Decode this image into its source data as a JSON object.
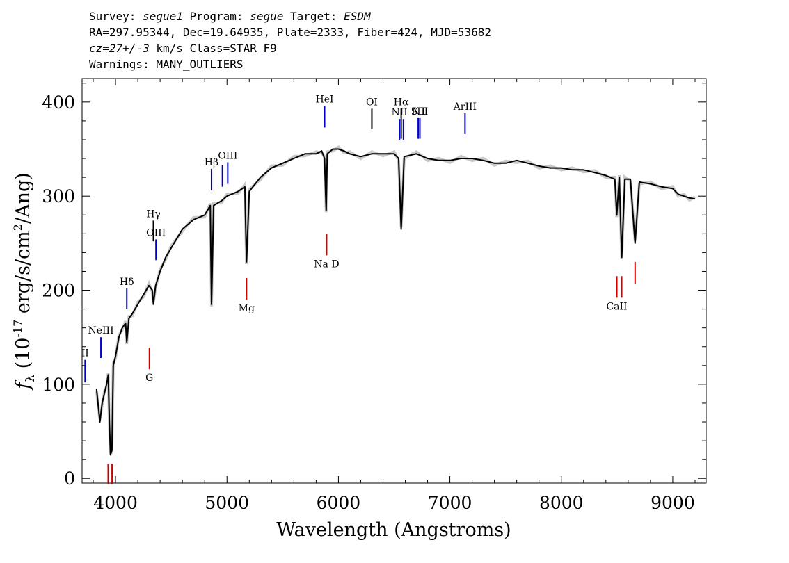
{
  "header": {
    "line1": {
      "survey_label": "Survey: ",
      "survey": "segue1",
      "program_label": " Program: ",
      "program": "segue",
      "target_label": " Target: ",
      "target": "ESDM"
    },
    "line2": "RA=297.95344, Dec=19.64935, Plate=2333, Fiber=424, MJD=53682",
    "line3": {
      "cz": "cz=27+/-3",
      "rest": " km/s Class=STAR F9"
    },
    "line4": "Warnings: MANY_OUTLIERS"
  },
  "chart_data": {
    "type": "line",
    "xlabel": "Wavelength (Angstroms)",
    "ylabel_parts": {
      "f": "f",
      "sub": "λ",
      "pre": " (10",
      "exp": "-17",
      "mid": " erg/s/cm",
      "exp2": "2",
      "post": "/Ang)"
    },
    "xlim": [
      3700,
      9300
    ],
    "ylim": [
      -5,
      425
    ],
    "x_ticks": [
      4000,
      5000,
      6000,
      7000,
      8000,
      9000
    ],
    "y_ticks": [
      0,
      100,
      200,
      300,
      400
    ],
    "x_tick_labels": [
      "4000",
      "5000",
      "6000",
      "7000",
      "8000",
      "9000"
    ],
    "y_tick_labels": [
      "0",
      "100",
      "200",
      "300",
      "400"
    ],
    "series": [
      {
        "color": "#000000",
        "x": [
          3830,
          3860,
          3880,
          3900,
          3920,
          3935,
          3945,
          3955,
          3968,
          3980,
          4000,
          4030,
          4060,
          4090,
          4101,
          4120,
          4150,
          4200,
          4250,
          4300,
          4330,
          4340,
          4360,
          4400,
          4450,
          4500,
          4600,
          4700,
          4800,
          4850,
          4861,
          4880,
          4950,
          5000,
          5100,
          5160,
          5175,
          5200,
          5300,
          5400,
          5500,
          5600,
          5700,
          5800,
          5850,
          5875,
          5890,
          5900,
          5950,
          6000,
          6050,
          6100,
          6200,
          6300,
          6400,
          6500,
          6540,
          6563,
          6590,
          6700,
          6800,
          6900,
          7000,
          7100,
          7200,
          7300,
          7400,
          7500,
          7600,
          7700,
          7800,
          7900,
          8000,
          8100,
          8200,
          8300,
          8400,
          8480,
          8498,
          8520,
          8542,
          8570,
          8620,
          8662,
          8700,
          8800,
          8900,
          9000,
          9050,
          9100,
          9150,
          9200
        ],
        "y": [
          95,
          60,
          80,
          90,
          100,
          110,
          60,
          25,
          30,
          120,
          130,
          150,
          160,
          165,
          145,
          170,
          175,
          185,
          195,
          205,
          200,
          185,
          205,
          220,
          235,
          245,
          265,
          275,
          280,
          290,
          185,
          290,
          295,
          300,
          305,
          310,
          230,
          305,
          320,
          330,
          335,
          340,
          345,
          345,
          348,
          340,
          285,
          345,
          350,
          350,
          348,
          345,
          342,
          345,
          345,
          345,
          340,
          265,
          342,
          345,
          340,
          338,
          338,
          340,
          340,
          338,
          335,
          335,
          338,
          335,
          332,
          330,
          330,
          328,
          328,
          325,
          322,
          318,
          280,
          320,
          235,
          318,
          318,
          250,
          315,
          313,
          310,
          308,
          302,
          300,
          298,
          297
        ]
      }
    ],
    "emission_lines": [
      {
        "label": "II",
        "wave": 3727,
        "color": "#0000cc",
        "y1": 102,
        "y2": 126
      },
      {
        "label": "NeIII",
        "wave": 3869,
        "color": "#0000cc",
        "y1": 128,
        "y2": 150
      },
      {
        "label": "Hδ",
        "wave": 4101,
        "color": "#0000cc",
        "y1": 180,
        "y2": 202
      },
      {
        "label": "Hγ",
        "wave": 4340,
        "color": "#000000",
        "y1": 252,
        "y2": 274
      },
      {
        "label": "OIII",
        "wave": 4363,
        "color": "#0000cc",
        "y1": 232,
        "y2": 254
      },
      {
        "label": "Hβ",
        "wave": 4861,
        "color": "#0000cc",
        "y1": 306,
        "y2": 329
      },
      {
        "label": "",
        "wave": 4959,
        "color": "#0000cc",
        "y1": 310,
        "y2": 333
      },
      {
        "label": "OIII",
        "wave": 5007,
        "color": "#0000cc",
        "y1": 313,
        "y2": 336
      },
      {
        "label": "HeI",
        "wave": 5876,
        "color": "#0000cc",
        "y1": 373,
        "y2": 396
      },
      {
        "label": "OI",
        "wave": 6300,
        "color": "#000000",
        "y1": 371,
        "y2": 393
      },
      {
        "label": "NII",
        "wave": 6548,
        "color": "#0000cc",
        "y1": 360,
        "y2": 382
      },
      {
        "label": "Hα",
        "wave": 6563,
        "color": "#000000",
        "y1": 361,
        "y2": 393
      },
      {
        "label": "",
        "wave": 6583,
        "color": "#0000cc",
        "y1": 360,
        "y2": 382
      },
      {
        "label": "SII",
        "wave": 6716,
        "color": "#0000cc",
        "y1": 361,
        "y2": 383
      },
      {
        "label": "NII",
        "wave": 6731,
        "color": "#0000cc",
        "y1": 361,
        "y2": 383
      },
      {
        "label": "ArIII",
        "wave": 7136,
        "color": "#0000cc",
        "y1": 366,
        "y2": 388
      }
    ],
    "absorption_lines": [
      {
        "label": "",
        "wave": 3934,
        "color": "#cc0000",
        "y1": -6,
        "y2": 15
      },
      {
        "label": "",
        "wave": 3969,
        "color": "#cc0000",
        "y1": -6,
        "y2": 15
      },
      {
        "label": "G",
        "wave": 4304,
        "color": "#cc0000",
        "y1": 116,
        "y2": 139
      },
      {
        "label": "Mg",
        "wave": 5175,
        "color": "#cc0000",
        "y1": 190,
        "y2": 213
      },
      {
        "label": "Na D",
        "wave": 5894,
        "color": "#cc0000",
        "y1": 237,
        "y2": 260
      },
      {
        "label": "CaII",
        "wave": 8498,
        "color": "#cc0000",
        "y1": 192,
        "y2": 215
      },
      {
        "label": "",
        "wave": 8542,
        "color": "#cc0000",
        "y1": 192,
        "y2": 215
      },
      {
        "label": "",
        "wave": 8662,
        "color": "#cc0000",
        "y1": 207,
        "y2": 230
      }
    ]
  }
}
